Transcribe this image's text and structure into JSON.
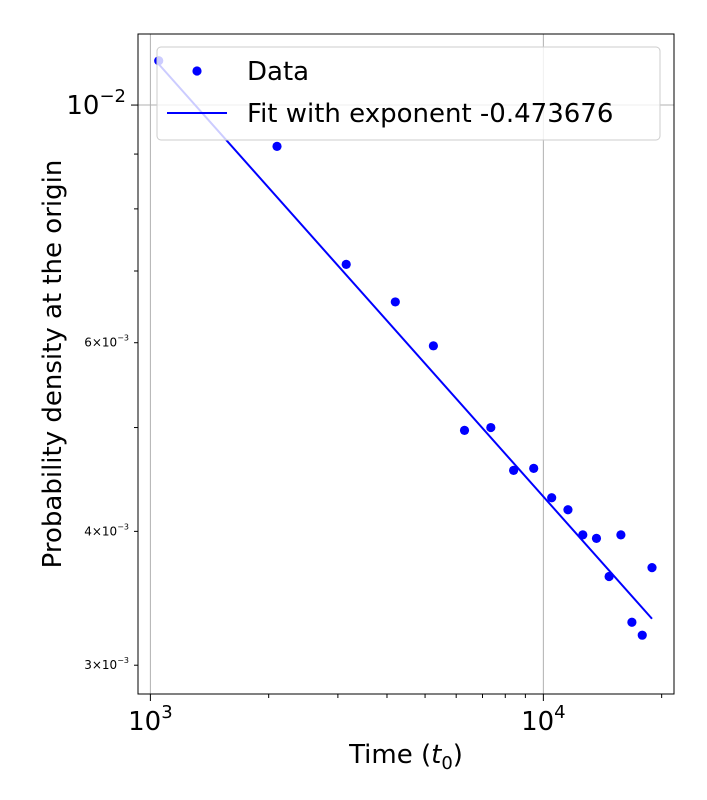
{
  "chart_data": {
    "type": "scatter",
    "xlabel": "Time (t0)",
    "xlabel_parts": {
      "prefix": "Time (",
      "var": "t",
      "sub": "0",
      "suffix": ")"
    },
    "ylabel": "Probability density at the origin",
    "xscale": "log",
    "yscale": "log",
    "xlim": [
      930,
      21500
    ],
    "ylim": [
      0.00282,
      0.01165
    ],
    "grid": "major",
    "legend_position": "top-right",
    "x_ticks": [
      {
        "value": 1000,
        "base": "10",
        "exp": "3"
      },
      {
        "value": 10000,
        "base": "10",
        "exp": "4"
      }
    ],
    "y_ticks_major": [
      {
        "value": 0.01,
        "base": "10",
        "exp": "−2"
      }
    ],
    "y_ticks_minor": [
      {
        "value": 0.006,
        "mant": "6",
        "times": "×",
        "base": "10",
        "exp": "−3"
      },
      {
        "value": 0.004,
        "mant": "4",
        "times": "×",
        "base": "10",
        "exp": "−3"
      },
      {
        "value": 0.003,
        "mant": "3",
        "times": "×",
        "base": "10",
        "exp": "−3"
      }
    ],
    "series": [
      {
        "name": "Data",
        "kind": "scatter",
        "color": "#0000ff",
        "x": [
          1050,
          2100,
          3150,
          4200,
          5250,
          6300,
          7350,
          8400,
          9450,
          10500,
          11550,
          12600,
          13650,
          14700,
          15750,
          16800,
          17850,
          18900
        ],
        "y": [
          0.011,
          0.00915,
          0.0071,
          0.00655,
          0.00596,
          0.00497,
          0.005,
          0.00456,
          0.00458,
          0.0043,
          0.00419,
          0.00397,
          0.00394,
          0.00363,
          0.00397,
          0.00329,
          0.0032,
          0.0037
        ]
      },
      {
        "name": "Fit with exponent -0.473676",
        "kind": "line",
        "color": "#0000ff",
        "exponent": -0.473676,
        "x": [
          1050,
          18900
        ],
        "y": [
          0.01092,
          0.003315
        ]
      }
    ]
  }
}
